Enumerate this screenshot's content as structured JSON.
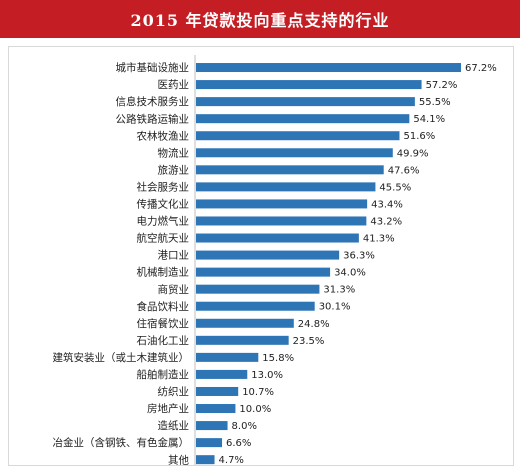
{
  "title": "2015 年贷款投向重点支持的行业",
  "colors": {
    "title_bg": "#c41e24",
    "bar": "#2e75b6",
    "axis": "#bfbfbf"
  },
  "chart_data": {
    "type": "bar",
    "orientation": "horizontal",
    "title": "2015 年贷款投向重点支持的行业",
    "xlabel": "",
    "ylabel": "",
    "categories": [
      "城市基础设施业",
      "医药业",
      "信息技术服务业",
      "公路铁路运输业",
      "农林牧渔业",
      "物流业",
      "旅游业",
      "社会服务业",
      "传播文化业",
      "电力燃气业",
      "航空航天业",
      "港口业",
      "机械制造业",
      "商贸业",
      "食品饮料业",
      "住宿餐饮业",
      "石油化工业",
      "建筑安装业（或土木建筑业）",
      "船舶制造业",
      "纺织业",
      "房地产业",
      "造纸业",
      "冶金业（含钢铁、有色金属）",
      "其他"
    ],
    "values": [
      67.2,
      57.2,
      55.5,
      54.1,
      51.6,
      49.9,
      47.6,
      45.5,
      43.4,
      43.2,
      41.3,
      36.3,
      34.0,
      31.3,
      30.1,
      24.8,
      23.5,
      15.8,
      13.0,
      10.7,
      10.0,
      8.0,
      6.6,
      4.7
    ],
    "value_labels": [
      "67.2%",
      "57.2%",
      "55.5%",
      "54.1%",
      "51.6%",
      "49.9%",
      "47.6%",
      "45.5%",
      "43.4%",
      "43.2%",
      "41.3%",
      "36.3%",
      "34.0%",
      "31.3%",
      "30.1%",
      "24.8%",
      "23.5%",
      "15.8%",
      "13.0%",
      "10.7%",
      "10.0%",
      "8.0%",
      "6.6%",
      "4.7%"
    ],
    "unit": "%",
    "xlim": [
      0,
      67.2
    ],
    "grid": false,
    "legend": "none"
  }
}
